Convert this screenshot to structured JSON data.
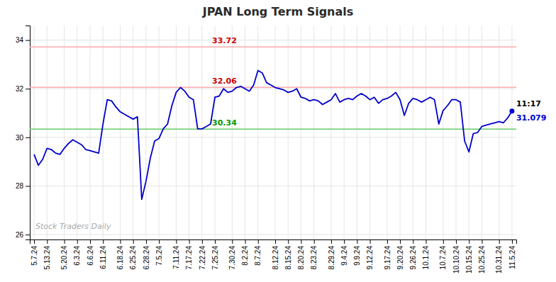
{
  "chart_data": {
    "type": "line",
    "title": "JPAN Long Term Signals",
    "color": "#0000cc",
    "grid": true,
    "ylim": [
      25.8,
      34.6
    ],
    "yticks": [
      26,
      28,
      30,
      32,
      34
    ],
    "categories": [
      "5.7.24",
      null,
      null,
      "5.13.24",
      null,
      null,
      null,
      "5.20.24",
      null,
      null,
      "6.3.24",
      null,
      null,
      "6.6.24",
      null,
      null,
      "6.11.24",
      null,
      null,
      null,
      "6.18.24",
      null,
      null,
      "6.25.24",
      null,
      null,
      "6.28.24",
      null,
      null,
      "7.5.24",
      null,
      null,
      null,
      "7.11.24",
      null,
      null,
      "7.17.24",
      null,
      null,
      "7.22.24",
      null,
      null,
      "7.25.24",
      null,
      null,
      null,
      "7.30.24",
      null,
      null,
      "8.2.24",
      null,
      null,
      "8.7.24",
      null,
      null,
      null,
      "8.12.24",
      null,
      null,
      "8.15.24",
      null,
      null,
      "8.20.24",
      null,
      null,
      "8.23.24",
      null,
      null,
      null,
      "8.29.24",
      null,
      null,
      "9.4.24",
      null,
      null,
      "9.9.24",
      null,
      null,
      "9.12.24",
      null,
      null,
      null,
      "9.17.24",
      null,
      null,
      "9.20.24",
      null,
      null,
      "9.26.24",
      null,
      null,
      "10.1.24",
      null,
      null,
      null,
      "10.7.24",
      null,
      null,
      "10.10.24",
      null,
      null,
      "10.15.24",
      null,
      null,
      "10.25.24",
      null,
      null,
      null,
      "10.31.24",
      null,
      null,
      "11.5.24"
    ],
    "values": [
      29.3,
      28.85,
      29.1,
      29.55,
      29.5,
      29.35,
      29.3,
      29.55,
      29.75,
      29.9,
      29.8,
      29.7,
      29.5,
      29.45,
      29.4,
      29.35,
      30.55,
      31.55,
      31.5,
      31.25,
      31.05,
      30.95,
      30.85,
      30.75,
      30.85,
      27.45,
      28.2,
      29.15,
      29.85,
      29.95,
      30.35,
      30.55,
      31.3,
      31.85,
      32.05,
      31.9,
      31.65,
      31.55,
      30.35,
      30.35,
      30.45,
      30.55,
      31.65,
      31.7,
      32.0,
      31.85,
      31.9,
      32.05,
      32.1,
      32.0,
      31.9,
      32.15,
      32.75,
      32.65,
      32.25,
      32.15,
      32.05,
      32.0,
      31.95,
      31.85,
      31.9,
      32.0,
      31.65,
      31.6,
      31.5,
      31.55,
      31.5,
      31.35,
      31.45,
      31.55,
      31.8,
      31.45,
      31.55,
      31.6,
      31.55,
      31.7,
      31.8,
      31.7,
      31.55,
      31.65,
      31.4,
      31.55,
      31.6,
      31.7,
      31.85,
      31.55,
      30.9,
      31.4,
      31.6,
      31.55,
      31.45,
      31.55,
      31.65,
      31.55,
      30.55,
      31.1,
      31.3,
      31.55,
      31.55,
      31.45,
      29.85,
      29.4,
      30.15,
      30.2,
      30.45,
      30.5,
      30.55,
      30.6,
      30.65,
      30.6,
      30.8,
      31.079
    ],
    "reference_lines": [
      {
        "value": 33.72,
        "label": "33.72",
        "color": "#ffaaaa",
        "label_color": "#cc0000"
      },
      {
        "value": 32.06,
        "label": "32.06",
        "color": "#ffaaaa",
        "label_color": "#cc0000"
      },
      {
        "value": 30.34,
        "label": "30.34",
        "color": "#66cc66",
        "label_color": "#009900"
      }
    ],
    "annotations": [
      {
        "text": "11:17"
      }
    ],
    "watermark": "Stock Traders Daily"
  }
}
